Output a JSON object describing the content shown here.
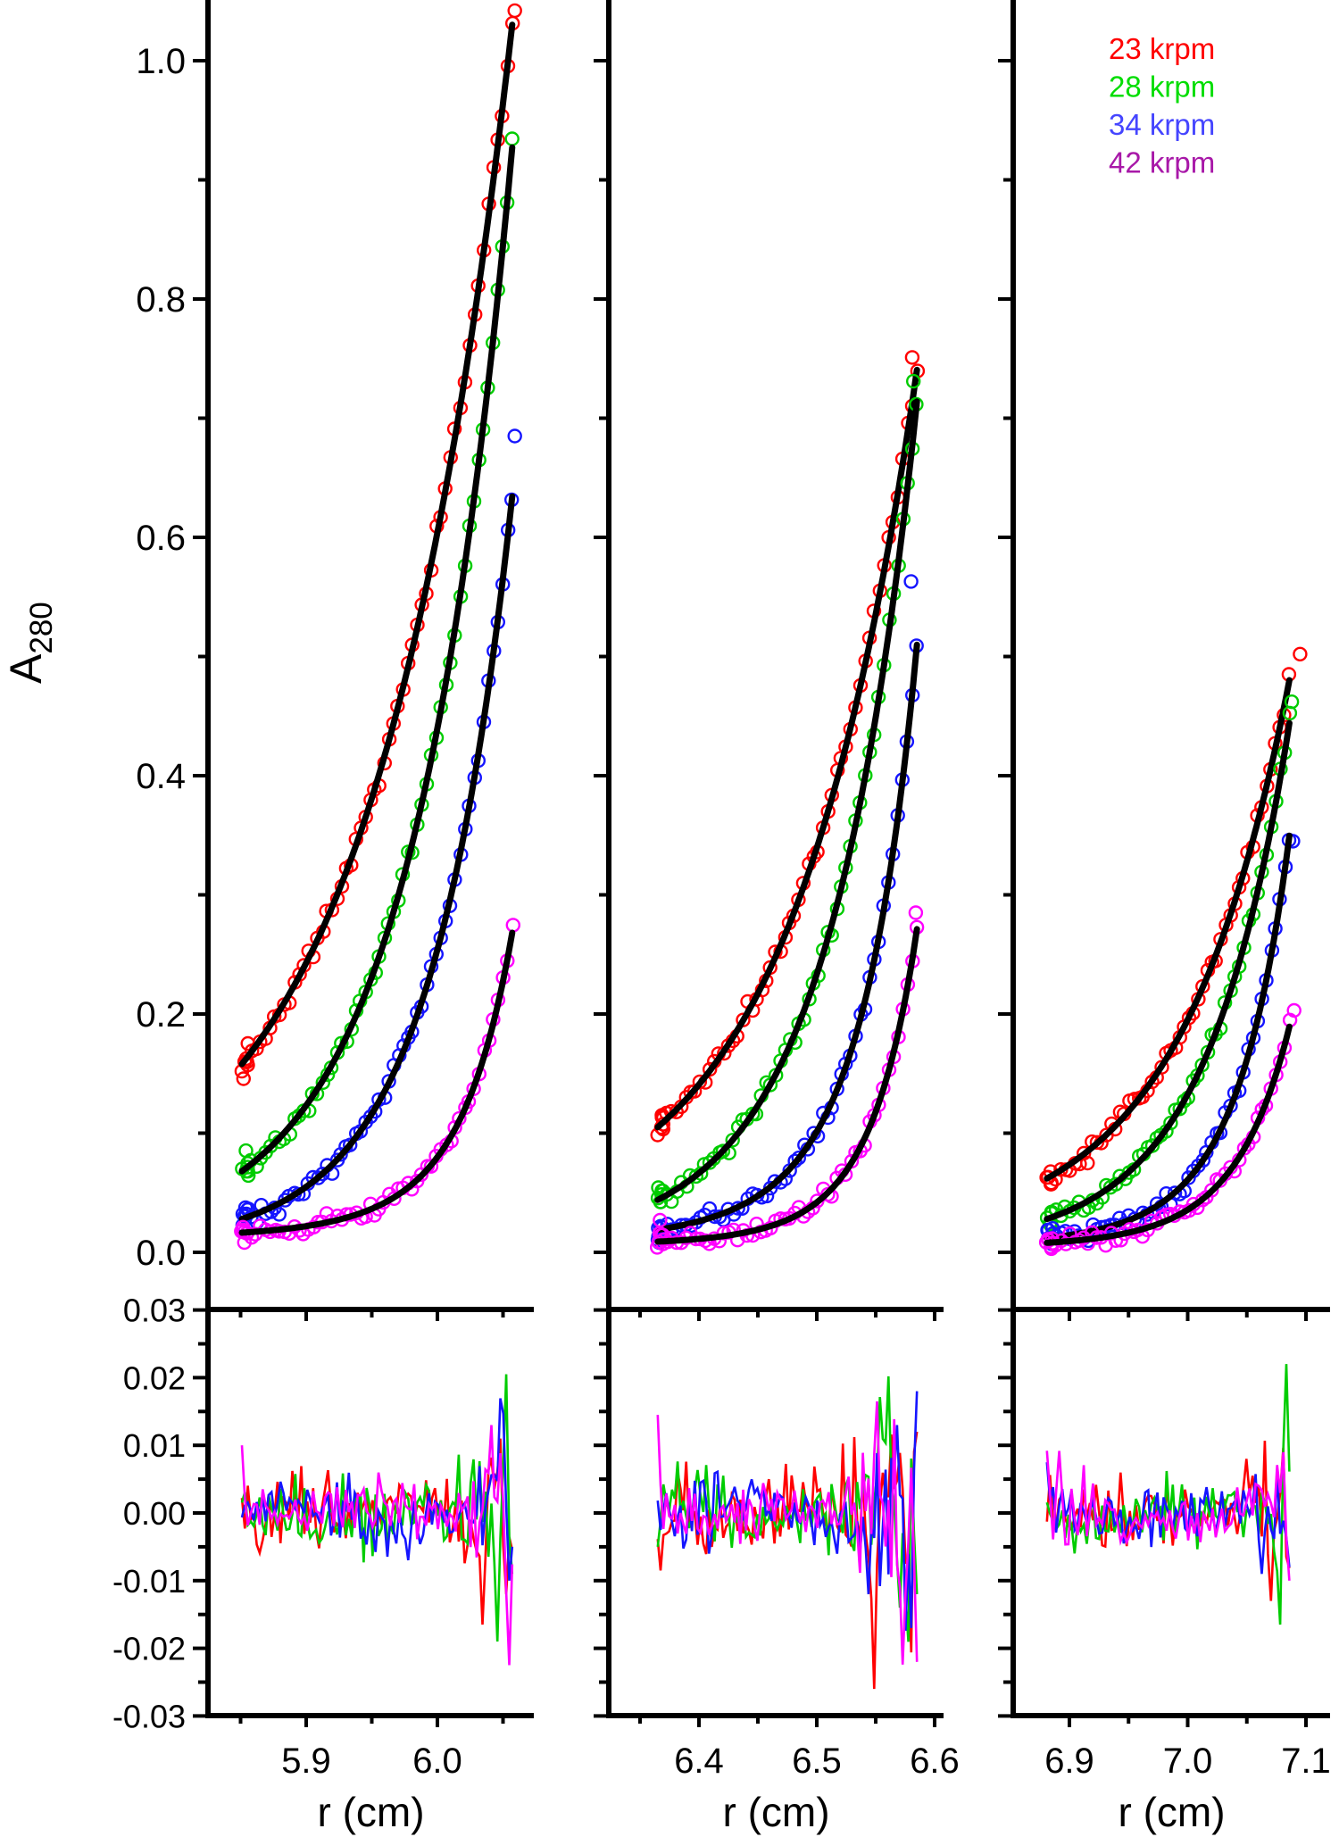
{
  "figure": {
    "kind": "sedimentation-equilibrium-multispeed-fit",
    "x_title": "r (cm)",
    "y_title": "A",
    "y_title_subscript": "280"
  },
  "legend": {
    "items": [
      {
        "label": "23 krpm",
        "color": "#FF0000"
      },
      {
        "label": "28 krpm",
        "color": "#00DD00"
      },
      {
        "label": "34 krpm",
        "color": "#4545FF"
      },
      {
        "label": "42 krpm",
        "color": "#A818A8"
      }
    ]
  },
  "chart_data": {
    "type": "scatter",
    "description": "Absorbance (280 nm) vs radius at four rotor speeds, three loading concentrations (columns); open circles = data, black curves = fit; lower panels = fit residuals",
    "speeds": [
      {
        "krpm": 23,
        "label": "23 krpm",
        "color": "#FF0000"
      },
      {
        "krpm": 28,
        "label": "28 krpm",
        "color": "#00CC00"
      },
      {
        "krpm": 34,
        "label": "34 krpm",
        "color": "#1515FF"
      },
      {
        "krpm": 42,
        "label": "42 krpm",
        "color": "#FF00FF"
      }
    ],
    "y_axis": {
      "label": "A280",
      "ticks_major": [
        0.0,
        0.2,
        0.4,
        0.6,
        0.8,
        1.0
      ],
      "ticks_minor": [
        0.1,
        0.3,
        0.5,
        0.7,
        0.9
      ],
      "range": [
        -0.05,
        1.05
      ],
      "decimals": 1
    },
    "residual_axis": {
      "ticks_major": [
        0.03,
        0.02,
        0.01,
        0.0,
        -0.01,
        -0.02,
        -0.03
      ],
      "ticks_minor": [
        0.025,
        0.015,
        0.005,
        -0.005,
        -0.015,
        -0.025
      ],
      "range": [
        -0.03,
        0.03
      ],
      "decimals": 2
    },
    "x_axis": {
      "label": "r (cm)"
    },
    "panels": [
      {
        "x_ticks_major": [
          5.9,
          6.0
        ],
        "x_ticks_minor": [
          5.85,
          5.95,
          6.05
        ],
        "r_data_start": 5.851,
        "r_fit_end": 6.057,
        "series": [
          {
            "speed_index": 0,
            "A_start": 0.16,
            "A_end": 1.03,
            "fit": {
              "b0": 0.01,
              "a1": 0.148,
              "c": 0.787,
              "a2": 0
            },
            "noise_sd": 0.004,
            "seed": 11,
            "n": 58,
            "outliers": [
              [
                6.059,
                1.042
              ]
            ]
          },
          {
            "speed_index": 1,
            "A_start": 0.07,
            "A_end": 0.93,
            "fit": {
              "b0": 0.005,
              "a1": 0.063,
              "c": 1.094,
              "a2": 0
            },
            "noise_sd": 0.004,
            "seed": 22,
            "n": 58,
            "outliers": []
          },
          {
            "speed_index": 2,
            "A_start": 0.03,
            "A_end": 0.64,
            "fit": {
              "b0": 0.005,
              "a1": 0.023,
              "c": 1.349,
              "a2": 0
            },
            "noise_sd": 0.0035,
            "seed": 33,
            "n": 58,
            "outliers": [
              [
                6.059,
                0.685
              ]
            ]
          },
          {
            "speed_index": 3,
            "A_start": 0.016,
            "A_end": 0.27,
            "fit": {
              "b0": 0.012,
              "a1": 0.004,
              "c": 1.2,
              "a2": 0.0005
            },
            "noise_sd": 0.003,
            "seed": 44,
            "n": 58,
            "outliers": []
          }
        ],
        "residual_series": [
          {
            "speed_index": 0,
            "seed": 111,
            "n": 92,
            "sd": 0.0028,
            "end_sd": 0.01,
            "end_frac": 0.7,
            "spikes": [
              [
                6.035,
                -0.0165
              ],
              [
                6.048,
                0.011
              ],
              [
                6.053,
                -0.012
              ]
            ]
          },
          {
            "speed_index": 1,
            "seed": 222,
            "n": 92,
            "sd": 0.0025,
            "end_sd": 0.009,
            "end_frac": 0.7,
            "spikes": [
              [
                6.045,
                -0.019
              ],
              [
                6.0525,
                0.0205
              ],
              [
                6.056,
                -0.009
              ]
            ]
          },
          {
            "speed_index": 2,
            "seed": 333,
            "n": 92,
            "sd": 0.0025,
            "end_sd": 0.009,
            "end_frac": 0.7,
            "spikes": [
              [
                6.052,
                0.027
              ],
              [
                6.0555,
                -0.01
              ]
            ]
          },
          {
            "speed_index": 3,
            "seed": 444,
            "n": 92,
            "sd": 0.0022,
            "end_sd": 0.008,
            "end_frac": 0.7,
            "spikes": [
              [
                5.851,
                0.01
              ],
              [
                6.042,
                0.013
              ],
              [
                6.054,
                -0.0225
              ]
            ]
          }
        ]
      },
      {
        "x_ticks_major": [
          6.4,
          6.5,
          6.6
        ],
        "x_ticks_minor": [
          6.35,
          6.45,
          6.55
        ],
        "r_data_start": 6.365,
        "r_fit_end": 6.585,
        "series": [
          {
            "speed_index": 0,
            "A_start": 0.105,
            "A_end": 0.74,
            "fit": {
              "b0": 0.01,
              "a1": 0.095,
              "c": 0.716,
              "a2": 0
            },
            "noise_sd": 0.004,
            "seed": 55,
            "n": 56,
            "outliers": [
              [
                6.581,
                0.751
              ]
            ]
          },
          {
            "speed_index": 1,
            "A_start": 0.044,
            "A_end": 0.715,
            "fit": {
              "b0": 0.005,
              "a1": 0.039,
              "c": 1.018,
              "a2": 0
            },
            "noise_sd": 0.004,
            "seed": 66,
            "n": 56,
            "outliers": [
              [
                6.582,
                0.731
              ]
            ]
          },
          {
            "speed_index": 2,
            "A_start": 0.019,
            "A_end": 0.51,
            "fit": {
              "b0": 0.008,
              "a1": 0.009,
              "c": 0.92,
              "a2": 0.002
            },
            "noise_sd": 0.0035,
            "seed": 77,
            "n": 56,
            "outliers": [
              [
                6.58,
                0.563
              ]
            ]
          },
          {
            "speed_index": 3,
            "A_start": 0.009,
            "A_end": 0.272,
            "fit": {
              "b0": 0.006,
              "a1": 0.0025,
              "c": 1.063,
              "a2": 0.0005
            },
            "noise_sd": 0.0028,
            "seed": 88,
            "n": 56,
            "outliers": [
              [
                6.584,
                0.285
              ],
              [
                6.367,
                0.027
              ]
            ]
          }
        ],
        "residual_series": [
          {
            "speed_index": 0,
            "seed": 555,
            "n": 92,
            "sd": 0.003,
            "end_sd": 0.011,
            "end_frac": 0.6,
            "spikes": [
              [
                6.368,
                -0.0085
              ],
              [
                6.46,
                0.005
              ],
              [
                6.548,
                -0.026
              ],
              [
                6.563,
                0.0116
              ],
              [
                6.585,
                0.012
              ]
            ]
          },
          {
            "speed_index": 1,
            "seed": 666,
            "n": 92,
            "sd": 0.0028,
            "end_sd": 0.012,
            "end_frac": 0.6,
            "spikes": [
              [
                6.366,
                -0.005
              ],
              [
                6.56,
                0.0202
              ],
              [
                6.571,
                -0.014
              ],
              [
                6.584,
                0.021
              ],
              [
                6.588,
                -0.012
              ]
            ]
          },
          {
            "speed_index": 2,
            "seed": 777,
            "n": 92,
            "sd": 0.0025,
            "end_sd": 0.01,
            "end_frac": 0.6,
            "spikes": [
              [
                6.545,
                -0.012
              ],
              [
                6.568,
                0.013
              ],
              [
                6.579,
                -0.017
              ],
              [
                6.586,
                0.018
              ]
            ]
          },
          {
            "speed_index": 3,
            "seed": 888,
            "n": 92,
            "sd": 0.0022,
            "end_sd": 0.012,
            "end_frac": 0.6,
            "spikes": [
              [
                6.365,
                0.0145
              ],
              [
                6.552,
                0.0165
              ],
              [
                6.573,
                -0.0224
              ],
              [
                6.582,
                0.014
              ],
              [
                6.588,
                -0.022
              ]
            ]
          }
        ]
      },
      {
        "x_ticks_major": [
          6.9,
          7.0,
          7.1
        ],
        "x_ticks_minor": [
          6.85,
          6.95,
          7.05
        ],
        "r_data_start": 6.881,
        "r_fit_end": 7.086,
        "series": [
          {
            "speed_index": 0,
            "A_start": 0.062,
            "A_end": 0.48,
            "fit": {
              "b0": 0.01,
              "a1": 0.052,
              "c": 0.769,
              "a2": 0
            },
            "noise_sd": 0.0035,
            "seed": 99,
            "n": 54,
            "outliers": [
              [
                7.095,
                0.502
              ]
            ]
          },
          {
            "speed_index": 1,
            "A_start": 0.028,
            "A_end": 0.443,
            "fit": {
              "b0": 0.004,
              "a1": 0.024,
              "c": 1.016,
              "a2": 0
            },
            "noise_sd": 0.0035,
            "seed": 110,
            "n": 54,
            "outliers": [
              [
                7.088,
                0.462
              ]
            ]
          },
          {
            "speed_index": 2,
            "A_start": 0.012,
            "A_end": 0.349,
            "fit": {
              "b0": 0.005,
              "a1": 0.005,
              "c": 0.866,
              "a2": 0.002
            },
            "noise_sd": 0.003,
            "seed": 121,
            "n": 54,
            "outliers": [
              [
                7.089,
                0.345
              ]
            ]
          },
          {
            "speed_index": 3,
            "A_start": 0.008,
            "A_end": 0.189,
            "fit": {
              "b0": 0.004,
              "a1": 0.0025,
              "c": 0.815,
              "a2": 0.0015
            },
            "noise_sd": 0.0028,
            "seed": 132,
            "n": 54,
            "outliers": [
              [
                7.09,
                0.203
              ]
            ]
          }
        ],
        "residual_series": [
          {
            "speed_index": 0,
            "seed": 999,
            "n": 80,
            "sd": 0.0028,
            "end_sd": 0.006,
            "end_frac": 0.88,
            "spikes": [
              [
                7.05,
                0.008
              ],
              [
                7.07,
                -0.013
              ]
            ]
          },
          {
            "speed_index": 1,
            "seed": 1010,
            "n": 80,
            "sd": 0.0025,
            "end_sd": 0.008,
            "end_frac": 0.88,
            "spikes": [
              [
                7.078,
                -0.0165
              ],
              [
                7.084,
                0.022
              ]
            ]
          },
          {
            "speed_index": 2,
            "seed": 1111,
            "n": 80,
            "sd": 0.0025,
            "end_sd": 0.007,
            "end_frac": 0.88,
            "spikes": [
              [
                6.882,
                0.0075
              ],
              [
                7.062,
                -0.009
              ],
              [
                7.086,
                -0.008
              ]
            ]
          },
          {
            "speed_index": 3,
            "seed": 1212,
            "n": 80,
            "sd": 0.0022,
            "end_sd": 0.006,
            "end_frac": 0.88,
            "spikes": [
              [
                6.881,
                0.0092
              ],
              [
                7.082,
                0.009
              ],
              [
                7.086,
                -0.01
              ]
            ]
          }
        ]
      }
    ]
  }
}
